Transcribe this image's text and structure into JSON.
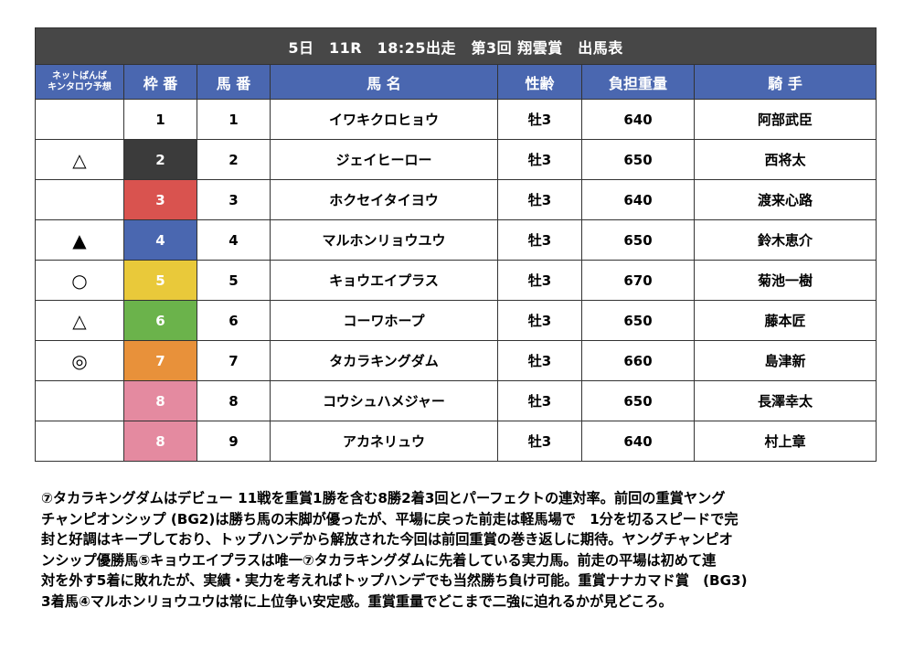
{
  "title": "5日　11R　18:25出走　第3回 翔雲賞　出馬表",
  "headers": {
    "prediction_line1": "ネットばんば",
    "prediction_line2": "キンタロウ予想",
    "waku": "枠 番",
    "umaban": "馬 番",
    "horse_name": "馬 名",
    "sex_age": "性齢",
    "weight": "負担重量",
    "jockey": "騎 手"
  },
  "waku_colors": {
    "1": "#ffffff",
    "2": "#3b3b3b",
    "3": "#d9534f",
    "4": "#4a67b0",
    "5": "#e9c93a",
    "6": "#6bb34b",
    "7": "#e8913a",
    "8": "#e48aa0"
  },
  "rows": [
    {
      "mark": "",
      "waku": "1",
      "umaban": "1",
      "name": "イワキクロヒョウ",
      "sex_age": "牡3",
      "weight": "640",
      "jockey": "阿部武臣"
    },
    {
      "mark": "△",
      "waku": "2",
      "umaban": "2",
      "name": "ジェイヒーロー",
      "sex_age": "牡3",
      "weight": "650",
      "jockey": "西将太"
    },
    {
      "mark": "",
      "waku": "3",
      "umaban": "3",
      "name": "ホクセイタイヨウ",
      "sex_age": "牡3",
      "weight": "640",
      "jockey": "渡来心路"
    },
    {
      "mark": "▲",
      "waku": "4",
      "umaban": "4",
      "name": "マルホンリョウユウ",
      "sex_age": "牡3",
      "weight": "650",
      "jockey": "鈴木恵介"
    },
    {
      "mark": "○",
      "waku": "5",
      "umaban": "5",
      "name": "キョウエイプラス",
      "sex_age": "牡3",
      "weight": "670",
      "jockey": "菊池一樹"
    },
    {
      "mark": "△",
      "waku": "6",
      "umaban": "6",
      "name": "コーワホープ",
      "sex_age": "牡3",
      "weight": "650",
      "jockey": "藤本匠"
    },
    {
      "mark": "◎",
      "waku": "7",
      "umaban": "7",
      "name": "タカラキングダム",
      "sex_age": "牡3",
      "weight": "660",
      "jockey": "島津新"
    },
    {
      "mark": "",
      "waku": "8",
      "umaban": "8",
      "name": "コウシュハメジャー",
      "sex_age": "牡3",
      "weight": "650",
      "jockey": "長澤幸太"
    },
    {
      "mark": "",
      "waku": "8",
      "umaban": "9",
      "name": "アカネリュウ",
      "sex_age": "牡3",
      "weight": "640",
      "jockey": "村上章"
    }
  ],
  "comment": "⑦タカラキングダムはデビュー 11戦を重賞1勝を含む8勝2着3回とパーフェクトの連対率。前回の重賞ヤング\nチャンピオンシップ (BG2)は勝ち馬の末脚が優ったが、平場に戻った前走は軽馬場で　1分を切るスピードで完\n封と好調はキープしており、トップハンデから解放された今回は前回重賞の巻き返しに期待。ヤングチャンピオ\nンシップ優勝馬⑤キョウエイプラスは唯一⑦タカラキングダムに先着している実力馬。前走の平場は初めて連\n対を外す5着に敗れたが、実績・実力を考えればトップハンデでも当然勝ち負け可能。重賞ナナカマド賞　(BG3)\n3着馬④マルホンリョウユウは常に上位争い安定感。重賞重量でどこまで二強に迫れるかが見どころ。"
}
